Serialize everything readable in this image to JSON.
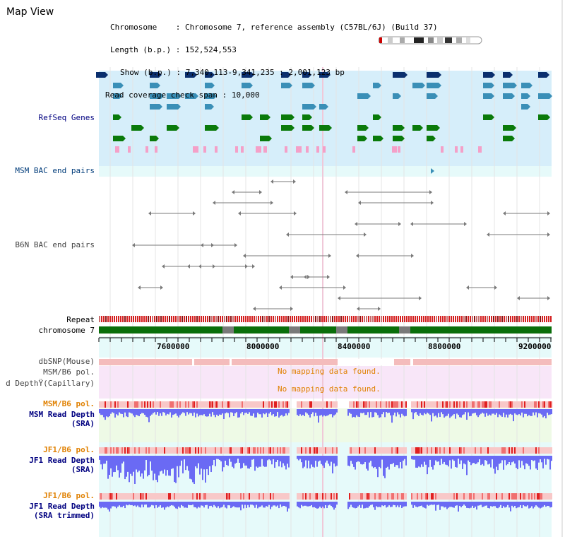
{
  "title": "Map View",
  "header": {
    "chromosome_key": "Chromosome",
    "chromosome_val": "Chromosome 7, reference assembly (C57BL/6J) (Build 37)",
    "length_key": "Length (b.p.)",
    "length_val": "152,524,553",
    "show_key": "Show (b.p.)",
    "show_val": "7,340,113-9,341,235 : 2,001,123 bp",
    "coverage_key": "Read coverage check span",
    "coverage_val": "10,000"
  },
  "tracks": {
    "refseq": "RefSeq Genes",
    "msm_bac": "MSM BAC end pairs",
    "b6n_bac": "B6N BAC end pairs",
    "repeat": "Repeat",
    "chromosome": "chromosome 7",
    "dbsnp": "dbSNP(Mouse)",
    "msm_b6_pol": "MSM/B6 pol.",
    "read_depth_cap": "d DepthŸ(Capillary)",
    "msm_b6_pol2": "MSM/B6 pol.",
    "msm_read_depth": "MSM Read Depth",
    "msm_sra": "(SRA)",
    "jf1_b6_pol": "JF1/B6 pol.",
    "jf1_read_depth": "JF1 Read Depth",
    "jf1_sra": "(SRA)",
    "jf1_b6_pol2": "JF1/B6 pol.",
    "jf1_read_depth2": "JF1 Read Depth",
    "jf1_sra_trimmed": "(SRA trimmed)"
  },
  "messages": {
    "no_data_1": "No mapping data found.",
    "no_data_2": "No mapping data found."
  },
  "axis": {
    "ticks": [
      "7600000",
      "8000000",
      "8400000",
      "8800000",
      "9200000"
    ]
  },
  "colors": {
    "track_bg_blue": "#d6eefa",
    "track_bg_cyan": "#e6fafa",
    "refseq_navy": "#0a2f6e",
    "refseq_teal": "#3a8fb7",
    "refseq_green": "#0a7a0a",
    "refseq_pink": "#f4a0c8",
    "bac_gray": "#7a7a7a",
    "chrom_green": "#0a6e0a",
    "chrom_gap": "#7a7a7a",
    "repeat_red": "#d42020",
    "snp_pink": "#f4bcbc",
    "pol_orange": "#e08000",
    "depth_blue": "#6a6af4",
    "label_navy": "#000080",
    "msg_orange": "#e08000"
  }
}
